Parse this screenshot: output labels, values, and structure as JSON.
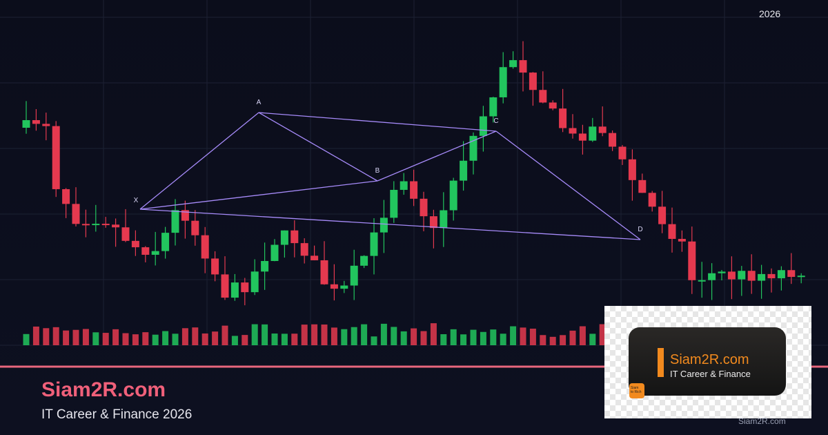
{
  "header": {
    "year": "2026"
  },
  "pattern": {
    "labels": [
      "X",
      "A",
      "B",
      "C",
      "D"
    ]
  },
  "brand": {
    "title": "Siam2R.com",
    "subtitle": "IT Career & Finance 2026"
  },
  "logo": {
    "title": "Siam2R.com",
    "subtitle": "IT Career & Finance",
    "badge": [
      "Siam",
      "to Rich"
    ]
  },
  "watermark": "Siam2R.com"
}
